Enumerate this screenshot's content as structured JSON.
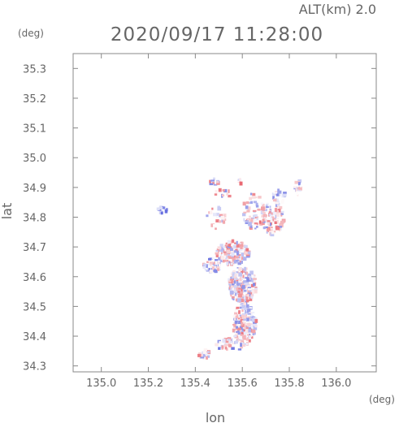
{
  "chart_data": {
    "type": "heatmap",
    "title": "2020/09/17 11:28:00",
    "subtitle": "ALT(km) 2.0",
    "xlabel": "lon",
    "ylabel": "lat",
    "xunit": "(deg)",
    "yunit": "(deg)",
    "xlim": [
      134.88,
      136.17
    ],
    "ylim": [
      34.28,
      35.35
    ],
    "xticks": [
      135.0,
      135.2,
      135.4,
      135.6,
      135.8,
      136.0
    ],
    "xtick_labels": [
      "135.0",
      "135.2",
      "135.4",
      "135.6",
      "135.8",
      "136.0"
    ],
    "yticks": [
      34.3,
      34.4,
      34.5,
      34.6,
      34.7,
      34.8,
      34.9,
      35.0,
      35.1,
      35.2,
      35.3
    ],
    "ytick_labels": [
      "34.3",
      "34.4",
      "34.5",
      "34.6",
      "34.7",
      "34.8",
      "34.9",
      "35.0",
      "35.1",
      "35.2",
      "35.3"
    ],
    "grid": false,
    "colors": {
      "positive": "#e8606a",
      "negative": "#6870e0",
      "frame": "#888888",
      "text": "#666666"
    },
    "clusters": [
      {
        "lon": 135.26,
        "lat": 34.825,
        "rlon": 0.02,
        "rlat": 0.012,
        "n": 14,
        "bias": -0.9
      },
      {
        "lon": 135.48,
        "lat": 34.92,
        "rlon": 0.02,
        "rlat": 0.012,
        "n": 12,
        "bias": 0
      },
      {
        "lon": 135.52,
        "lat": 34.88,
        "rlon": 0.04,
        "rlat": 0.012,
        "n": 10,
        "bias": 0
      },
      {
        "lon": 135.59,
        "lat": 34.92,
        "rlon": 0.01,
        "rlat": 0.008,
        "n": 5,
        "bias": 0.5
      },
      {
        "lon": 135.49,
        "lat": 34.8,
        "rlon": 0.04,
        "rlat": 0.04,
        "n": 22,
        "bias": 0.2
      },
      {
        "lon": 135.65,
        "lat": 34.82,
        "rlon": 0.05,
        "rlat": 0.06,
        "n": 70,
        "bias": 0.2
      },
      {
        "lon": 135.73,
        "lat": 34.8,
        "rlon": 0.05,
        "rlat": 0.06,
        "n": 90,
        "bias": 0.1
      },
      {
        "lon": 135.76,
        "lat": 34.87,
        "rlon": 0.03,
        "rlat": 0.02,
        "n": 18,
        "bias": -0.3
      },
      {
        "lon": 135.84,
        "lat": 34.9,
        "rlon": 0.015,
        "rlat": 0.03,
        "n": 18,
        "bias": -0.3
      },
      {
        "lon": 135.56,
        "lat": 34.68,
        "rlon": 0.07,
        "rlat": 0.04,
        "n": 160,
        "bias": 0.2
      },
      {
        "lon": 135.47,
        "lat": 34.64,
        "rlon": 0.04,
        "rlat": 0.025,
        "n": 50,
        "bias": -0.5
      },
      {
        "lon": 135.6,
        "lat": 34.57,
        "rlon": 0.06,
        "rlat": 0.06,
        "n": 240,
        "bias": 0
      },
      {
        "lon": 135.61,
        "lat": 34.44,
        "rlon": 0.05,
        "rlat": 0.07,
        "n": 180,
        "bias": 0
      },
      {
        "lon": 135.55,
        "lat": 34.37,
        "rlon": 0.06,
        "rlat": 0.02,
        "n": 40,
        "bias": -0.3
      },
      {
        "lon": 135.44,
        "lat": 34.34,
        "rlon": 0.03,
        "rlat": 0.015,
        "n": 22,
        "bias": 0.1
      }
    ]
  }
}
